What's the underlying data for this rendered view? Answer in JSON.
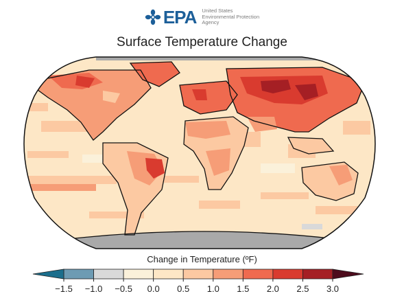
{
  "logo": {
    "text": "EPA",
    "agency_lines": [
      "United States",
      "Environmental Protection",
      "Agency"
    ],
    "brand_color": "#1c5f99",
    "icon": "epa-flower-icon"
  },
  "title": "Surface Temperature Change",
  "legend": {
    "title": "Change in Temperature (ºF)",
    "ticks": [
      "−1.5",
      "−1.0",
      "−0.5",
      "0.0",
      "0.5",
      "1.0",
      "1.5",
      "2.0",
      "2.5",
      "3.0"
    ],
    "bins": [
      {
        "range": [
          -1.5,
          -1.0
        ],
        "color": "#6d9bb3"
      },
      {
        "range": [
          -1.0,
          -0.5
        ],
        "color": "#d9d9d9"
      },
      {
        "range": [
          -0.5,
          0.0
        ],
        "color": "#fbf1da"
      },
      {
        "range": [
          0.0,
          0.5
        ],
        "color": "#fde7c6"
      },
      {
        "range": [
          0.5,
          1.0
        ],
        "color": "#fcc9a2"
      },
      {
        "range": [
          1.0,
          1.5
        ],
        "color": "#f69d77"
      },
      {
        "range": [
          1.5,
          2.0
        ],
        "color": "#ef6a4f"
      },
      {
        "range": [
          2.0,
          2.5
        ],
        "color": "#d93b2f"
      },
      {
        "range": [
          2.5,
          3.0
        ],
        "color": "#a51f24"
      }
    ],
    "extend_low_color": "#1b6e8c",
    "extend_high_color": "#4d0b1c"
  },
  "map": {
    "projection": "Robinson",
    "ocean_base_color": "#fde7c6",
    "no_data_color": "#a9a9a9",
    "coastline_color": "#111111"
  }
}
